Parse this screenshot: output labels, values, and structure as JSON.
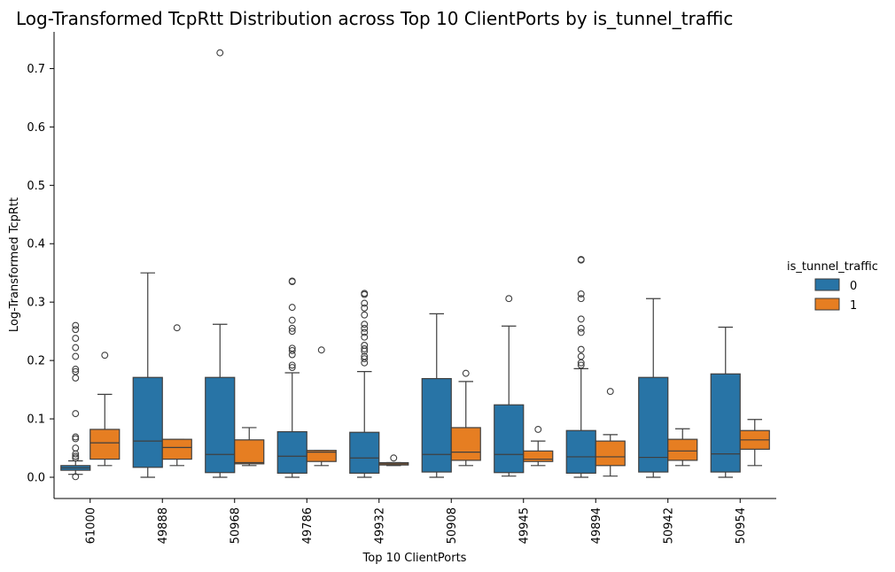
{
  "chart_data": {
    "type": "box",
    "title": "Log-Transformed TcpRtt Distribution across Top 10 ClientPorts by is_tunnel_traffic",
    "xlabel": "Top 10 ClientPorts",
    "ylabel": "Log-Transformed TcpRtt",
    "ylim": [
      -0.035,
      0.765
    ],
    "yticks": [
      0.0,
      0.1,
      0.2,
      0.3,
      0.4,
      0.5,
      0.6,
      0.7
    ],
    "ytick_labels": [
      "0.0",
      "0.1",
      "0.2",
      "0.3",
      "0.4",
      "0.5",
      "0.6",
      "0.7"
    ],
    "categories": [
      "61000",
      "49888",
      "50968",
      "49786",
      "49932",
      "50908",
      "49945",
      "49894",
      "50942",
      "50954"
    ],
    "legend": {
      "title": "is_tunnel_traffic",
      "position": "right"
    },
    "series": [
      {
        "name": "0",
        "color": "#2874a6",
        "boxes": [
          {
            "whislo": 0.005,
            "q1": 0.012,
            "med": 0.016,
            "q3": 0.02,
            "whishi": 0.028,
            "fliers": [
              0.26,
              0.253,
              0.238,
              0.222,
              0.207,
              0.185,
              0.181,
              0.17,
              0.109,
              0.069,
              0.066,
              0.05,
              0.04,
              0.036,
              0.033,
              0.001
            ]
          },
          {
            "whislo": 0.0,
            "q1": 0.017,
            "med": 0.062,
            "q3": 0.171,
            "whishi": 0.35,
            "fliers": []
          },
          {
            "whislo": 0.0,
            "q1": 0.008,
            "med": 0.039,
            "q3": 0.171,
            "whishi": 0.262,
            "fliers": [
              0.727
            ]
          },
          {
            "whislo": 0.0,
            "q1": 0.007,
            "med": 0.036,
            "q3": 0.078,
            "whishi": 0.179,
            "fliers": [
              0.336,
              0.335,
              0.291,
              0.269,
              0.255,
              0.25,
              0.221,
              0.217,
              0.21,
              0.192,
              0.188
            ]
          },
          {
            "whislo": 0.0,
            "q1": 0.007,
            "med": 0.033,
            "q3": 0.077,
            "whishi": 0.181,
            "fliers": [
              0.315,
              0.313,
              0.298,
              0.29,
              0.278,
              0.262,
              0.255,
              0.248,
              0.24,
              0.226,
              0.22,
              0.216,
              0.207,
              0.203,
              0.196
            ]
          },
          {
            "whislo": 0.0,
            "q1": 0.009,
            "med": 0.039,
            "q3": 0.169,
            "whishi": 0.28,
            "fliers": []
          },
          {
            "whislo": 0.002,
            "q1": 0.008,
            "med": 0.039,
            "q3": 0.124,
            "whishi": 0.259,
            "fliers": [
              0.306
            ]
          },
          {
            "whislo": 0.0,
            "q1": 0.007,
            "med": 0.035,
            "q3": 0.08,
            "whishi": 0.186,
            "fliers": [
              0.373,
              0.372,
              0.314,
              0.306,
              0.271,
              0.255,
              0.248,
              0.219,
              0.207,
              0.196,
              0.192
            ]
          },
          {
            "whislo": 0.0,
            "q1": 0.009,
            "med": 0.034,
            "q3": 0.171,
            "whishi": 0.306,
            "fliers": []
          },
          {
            "whislo": 0.0,
            "q1": 0.009,
            "med": 0.04,
            "q3": 0.177,
            "whishi": 0.257,
            "fliers": []
          }
        ]
      },
      {
        "name": "1",
        "color": "#e67e22",
        "boxes": [
          {
            "whislo": 0.02,
            "q1": 0.031,
            "med": 0.059,
            "q3": 0.082,
            "whishi": 0.142,
            "fliers": [
              0.209
            ]
          },
          {
            "whislo": 0.02,
            "q1": 0.031,
            "med": 0.051,
            "q3": 0.065,
            "whishi": 0.065,
            "fliers": [
              0.256
            ]
          },
          {
            "whislo": 0.02,
            "q1": 0.023,
            "med": 0.025,
            "q3": 0.064,
            "whishi": 0.085,
            "fliers": []
          },
          {
            "whislo": 0.02,
            "q1": 0.027,
            "med": 0.043,
            "q3": 0.046,
            "whishi": 0.046,
            "fliers": [
              0.218
            ]
          },
          {
            "whislo": 0.02,
            "q1": 0.021,
            "med": 0.023,
            "q3": 0.025,
            "whishi": 0.025,
            "fliers": [
              0.033
            ]
          },
          {
            "whislo": 0.02,
            "q1": 0.029,
            "med": 0.043,
            "q3": 0.085,
            "whishi": 0.164,
            "fliers": [
              0.178
            ]
          },
          {
            "whislo": 0.02,
            "q1": 0.027,
            "med": 0.031,
            "q3": 0.045,
            "whishi": 0.062,
            "fliers": [
              0.082
            ]
          },
          {
            "whislo": 0.002,
            "q1": 0.02,
            "med": 0.035,
            "q3": 0.062,
            "whishi": 0.073,
            "fliers": [
              0.147
            ]
          },
          {
            "whislo": 0.02,
            "q1": 0.029,
            "med": 0.045,
            "q3": 0.065,
            "whishi": 0.083,
            "fliers": []
          },
          {
            "whislo": 0.02,
            "q1": 0.048,
            "med": 0.064,
            "q3": 0.08,
            "whishi": 0.099,
            "fliers": []
          }
        ]
      }
    ]
  }
}
